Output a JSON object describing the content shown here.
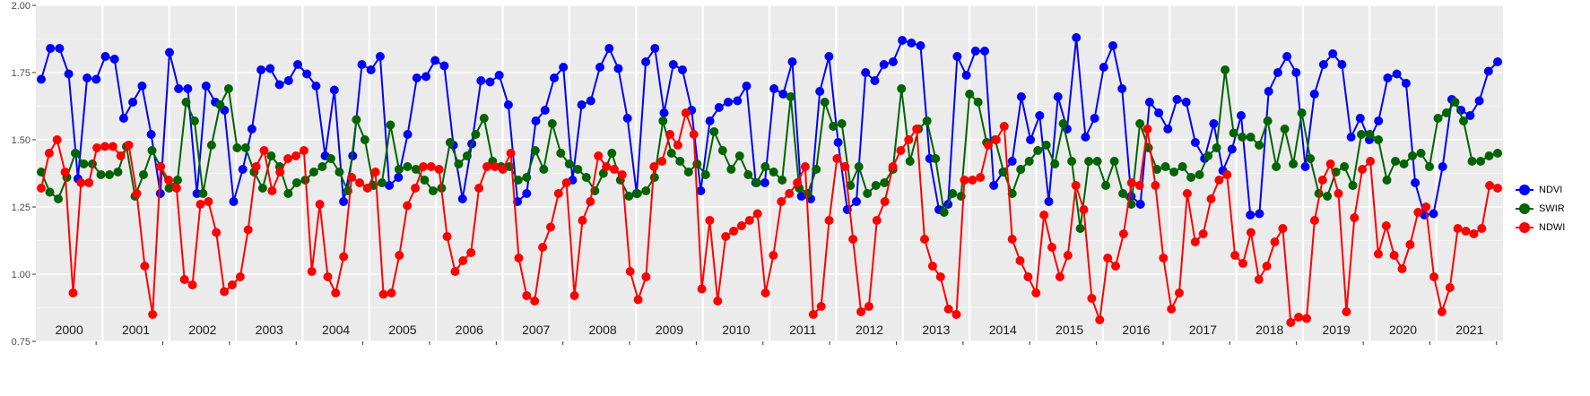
{
  "chart_data": {
    "type": "line",
    "title": "",
    "xlabel": "",
    "ylabel": "",
    "ylim": [
      0.75,
      2.0
    ],
    "yticks": [
      "0.75",
      "1.00",
      "1.25",
      "1.50",
      "1.75",
      "2.00"
    ],
    "ytick_values": [
      0.75,
      1.0,
      1.25,
      1.5,
      1.75,
      2.0
    ],
    "facets": [
      "2000",
      "2001",
      "2002",
      "2003",
      "2004",
      "2005",
      "2006",
      "2007",
      "2008",
      "2009",
      "2010",
      "2011",
      "2012",
      "2013",
      "2014",
      "2015",
      "2016",
      "2017",
      "2018",
      "2019",
      "2020",
      "2021"
    ],
    "grid": true,
    "legend_position": "right",
    "series": [
      {
        "name": "NDVI",
        "color": "#0000ff",
        "values": [
          1.725,
          1.84,
          1.84,
          1.745,
          1.355,
          1.73,
          1.725,
          1.81,
          1.8,
          1.58,
          1.64,
          1.7,
          1.52,
          1.3,
          1.825,
          1.69,
          1.69,
          1.3,
          1.7,
          1.64,
          1.61,
          1.27,
          1.39,
          1.54,
          1.76,
          1.765,
          1.705,
          1.72,
          1.78,
          1.745,
          1.7,
          1.44,
          1.685,
          1.27,
          1.44,
          1.78,
          1.76,
          1.81,
          1.33,
          1.36,
          1.52,
          1.73,
          1.735,
          1.795,
          1.775,
          1.48,
          1.28,
          1.485,
          1.72,
          1.715,
          1.74,
          1.63,
          1.27,
          1.3,
          1.57,
          1.61,
          1.73,
          1.77,
          1.35,
          1.63,
          1.645,
          1.77,
          1.84,
          1.765,
          1.58,
          1.3,
          1.79,
          1.84,
          1.6,
          1.78,
          1.76,
          1.61,
          1.31,
          1.57,
          1.62,
          1.64,
          1.645,
          1.7,
          1.34,
          1.34,
          1.69,
          1.67,
          1.79,
          1.29,
          1.28,
          1.68,
          1.81,
          1.49,
          1.24,
          1.27,
          1.75,
          1.72,
          1.78,
          1.79,
          1.87,
          1.86,
          1.85,
          1.43,
          1.24,
          1.26,
          1.81,
          1.74,
          1.83,
          1.83,
          1.33,
          1.38,
          1.42,
          1.66,
          1.5,
          1.59,
          1.27,
          1.66,
          1.54,
          1.88,
          1.51,
          1.58,
          1.77,
          1.85,
          1.69,
          1.29,
          1.26,
          1.64,
          1.6,
          1.54,
          1.65,
          1.64,
          1.49,
          1.43,
          1.56,
          1.385,
          1.465,
          1.59,
          1.22,
          1.225,
          1.68,
          1.75,
          1.81,
          1.75,
          1.4,
          1.67,
          1.78,
          1.82,
          1.78,
          1.51,
          1.58,
          1.5,
          1.57,
          1.73,
          1.745,
          1.71,
          1.34,
          1.22,
          1.225,
          1.4,
          1.65,
          1.61,
          1.59,
          1.645,
          1.755,
          1.79
        ]
      },
      {
        "name": "SWIR",
        "color": "#006400",
        "values": [
          1.38,
          1.305,
          1.28,
          1.36,
          1.45,
          1.41,
          1.41,
          1.37,
          1.37,
          1.38,
          1.475,
          1.29,
          1.37,
          1.46,
          1.4,
          1.32,
          1.35,
          1.64,
          1.57,
          1.3,
          1.48,
          1.63,
          1.69,
          1.47,
          1.47,
          1.38,
          1.32,
          1.44,
          1.4,
          1.3,
          1.34,
          1.35,
          1.38,
          1.4,
          1.43,
          1.38,
          1.31,
          1.575,
          1.5,
          1.33,
          1.34,
          1.555,
          1.39,
          1.4,
          1.39,
          1.35,
          1.31,
          1.32,
          1.49,
          1.41,
          1.44,
          1.52,
          1.58,
          1.42,
          1.4,
          1.4,
          1.35,
          1.36,
          1.46,
          1.39,
          1.56,
          1.45,
          1.41,
          1.39,
          1.36,
          1.31,
          1.375,
          1.45,
          1.35,
          1.29,
          1.3,
          1.31,
          1.36,
          1.57,
          1.45,
          1.42,
          1.38,
          1.41,
          1.37,
          1.53,
          1.46,
          1.39,
          1.44,
          1.37,
          1.34,
          1.4,
          1.38,
          1.35,
          1.66,
          1.32,
          1.3,
          1.39,
          1.64,
          1.55,
          1.56,
          1.33,
          1.4,
          1.3,
          1.33,
          1.34,
          1.39,
          1.69,
          1.42,
          1.54,
          1.57,
          1.43,
          1.23,
          1.3,
          1.29,
          1.67,
          1.64,
          1.49,
          1.5,
          1.38,
          1.3,
          1.39,
          1.42,
          1.46,
          1.48,
          1.41,
          1.56,
          1.42,
          1.17,
          1.42,
          1.42,
          1.33,
          1.42,
          1.3,
          1.26,
          1.56,
          1.47,
          1.39,
          1.4,
          1.38,
          1.4,
          1.36,
          1.37,
          1.44,
          1.47,
          1.76,
          1.525,
          1.51,
          1.51,
          1.48,
          1.57,
          1.4,
          1.54,
          1.41,
          1.6,
          1.43,
          1.3,
          1.29,
          1.38,
          1.4,
          1.33,
          1.52,
          1.52,
          1.5,
          1.35,
          1.42,
          1.41,
          1.44,
          1.45,
          1.4,
          1.58,
          1.6,
          1.64,
          1.57,
          1.42,
          1.42,
          1.44,
          1.45
        ]
      },
      {
        "name": "NDWI",
        "color": "#ff0000",
        "values": [
          1.32,
          1.45,
          1.5,
          1.38,
          0.93,
          1.34,
          1.34,
          1.47,
          1.475,
          1.475,
          1.44,
          1.48,
          1.3,
          1.03,
          0.85,
          1.4,
          1.35,
          1.32,
          0.98,
          0.96,
          1.26,
          1.27,
          1.155,
          0.935,
          0.96,
          0.99,
          1.165,
          1.4,
          1.46,
          1.31,
          1.38,
          1.43,
          1.44,
          1.46,
          1.01,
          1.26,
          0.99,
          0.93,
          1.065,
          1.36,
          1.34,
          1.32,
          1.38,
          0.925,
          0.93,
          1.07,
          1.255,
          1.32,
          1.4,
          1.4,
          1.39,
          1.14,
          1.01,
          1.05,
          1.08,
          1.32,
          1.4,
          1.4,
          1.39,
          1.45,
          1.06,
          0.92,
          0.9,
          1.1,
          1.175,
          1.3,
          1.34,
          0.92,
          1.2,
          1.27,
          1.44,
          1.4,
          1.39,
          1.37,
          1.01,
          0.905,
          0.99,
          1.4,
          1.42,
          1.52,
          1.48,
          1.6,
          1.52,
          0.945,
          1.2,
          0.9,
          1.14,
          1.16,
          1.18,
          1.2,
          1.225,
          0.93,
          1.07,
          1.27,
          1.3,
          1.34,
          1.4,
          0.85,
          0.88,
          1.2,
          1.43,
          1.4,
          1.13,
          0.86,
          0.88,
          1.2,
          1.27,
          1.4,
          1.46,
          1.5,
          1.54,
          1.13,
          1.03,
          0.99,
          0.87,
          0.85,
          1.35,
          1.35,
          1.36,
          1.48,
          1.5,
          1.55,
          1.13,
          1.05,
          0.99,
          0.93,
          1.22,
          1.1,
          0.99,
          1.07,
          1.33,
          1.24,
          0.91,
          0.83,
          1.06,
          1.03,
          1.15,
          1.34,
          1.33,
          1.54,
          1.33,
          1.06,
          0.87,
          0.93,
          1.3,
          1.12,
          1.15,
          1.28,
          1.35,
          1.37,
          1.07,
          1.04,
          1.155,
          0.98,
          1.03,
          1.12,
          1.17,
          0.82,
          0.84,
          0.835,
          1.2,
          1.35,
          1.41,
          1.3,
          0.86,
          1.21,
          1.39,
          1.42,
          1.075,
          1.18,
          1.07,
          1.02,
          1.11,
          1.23,
          1.25,
          0.99,
          0.86,
          0.95,
          1.17,
          1.16,
          1.15,
          1.17,
          1.33,
          1.32
        ]
      }
    ]
  }
}
